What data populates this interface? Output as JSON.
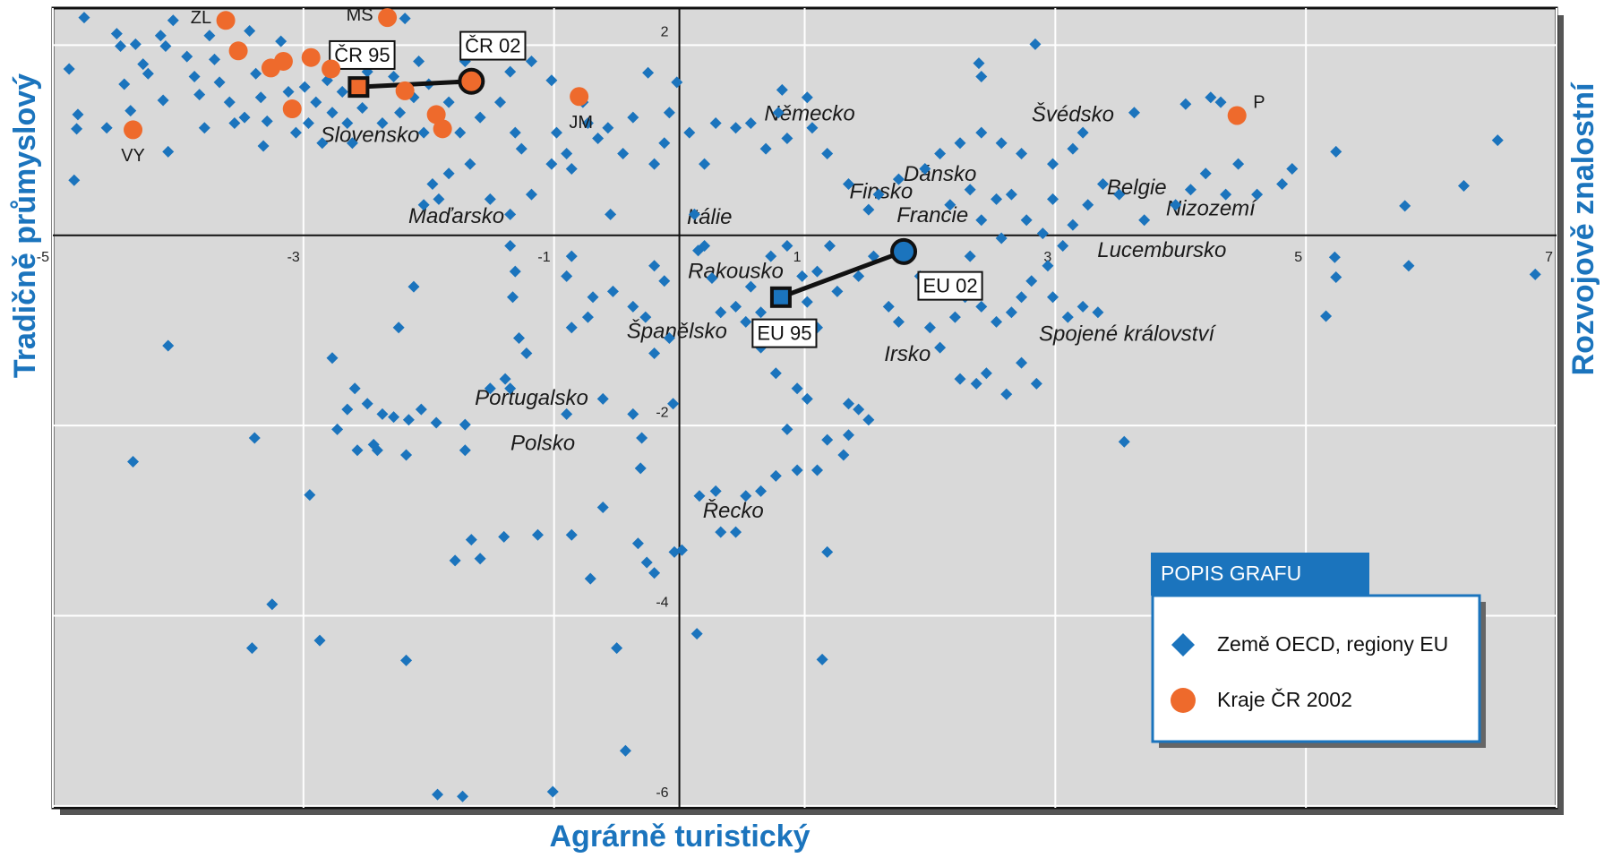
{
  "chart_data": {
    "type": "scatter",
    "x_label": "Agrárně turistický",
    "y_label": "Tradičně průmyslový",
    "y2_label": "Rozvojově znalostní",
    "xlim": [
      -5,
      7
    ],
    "ylim": [
      -6.02,
      2.39
    ],
    "xticks": [
      -5,
      -3,
      -1,
      1,
      3,
      5,
      7
    ],
    "yticks": [
      2,
      -2,
      -4,
      -6
    ],
    "grid": true,
    "legend": {
      "title": "POPIS GRAFU",
      "position": "lower right"
    },
    "series": [
      {
        "name": "Země OECD, regiony EU",
        "color": "#1b74bd",
        "marker": "diamond",
        "x": [
          -4.75,
          -4.87,
          -4.8,
          -4.81,
          -4.83,
          -4.57,
          -4.49,
          -4.46,
          -4.43,
          -4.38,
          -4.34,
          -4.28,
          -4.24,
          -4.14,
          -4.1,
          -4.12,
          -4.08,
          -4.04,
          -3.93,
          -3.87,
          -3.83,
          -3.79,
          -3.75,
          -3.71,
          -3.67,
          -3.59,
          -3.55,
          -3.47,
          -3.43,
          -3.38,
          -3.34,
          -3.32,
          -3.29,
          -3.18,
          -3.12,
          -3.06,
          -2.99,
          -2.96,
          -2.9,
          -2.85,
          -2.81,
          -2.77,
          -2.69,
          -2.65,
          -2.61,
          -2.53,
          -2.49,
          -2.41,
          -2.37,
          -2.28,
          -2.23,
          -2.19,
          -2.12,
          -2.08,
          -2.04,
          -2.0,
          -1.84,
          -1.75,
          -1.71,
          -1.59,
          -1.51,
          -1.43,
          -1.35,
          -1.31,
          -1.26,
          -1.18,
          -1.02,
          -0.98,
          -0.9,
          -0.86,
          -0.77,
          -0.73,
          -0.65,
          -0.55,
          -0.57,
          -0.45,
          -0.37,
          -0.25,
          -0.2,
          -0.12,
          -0.08,
          -0.02,
          -1.97,
          -1.92,
          -2.04,
          -1.84,
          -1.67,
          -1.51,
          -1.35,
          -1.18,
          -1.02,
          -1.35,
          -1.31,
          -1.33,
          -1.28,
          -1.22,
          -1.39,
          -0.86,
          -0.9,
          -0.69,
          -0.73,
          -0.86,
          -0.53,
          -0.37,
          -0.2,
          -0.12,
          -0.2,
          -0.08,
          -0.27,
          -2.12,
          -2.24,
          -2.77,
          -2.59,
          -2.49,
          -2.37,
          -2.28,
          -2.16,
          -2.06,
          -1.94,
          -2.65,
          -2.73,
          -2.41,
          -2.57,
          -2.44,
          -2.18,
          -1.71,
          -1.71,
          -1.51,
          -1.35,
          -0.9,
          -0.61,
          -0.37,
          -0.3,
          -0.05,
          -4.08,
          -4.36,
          -3.39,
          -2.95,
          -3.25,
          -3.41,
          -2.87,
          -2.18,
          -1.79,
          -1.66,
          -1.59,
          -1.4,
          -1.13,
          -0.86,
          -0.71,
          -0.5,
          -0.43,
          -0.33,
          -0.26,
          -0.2,
          -0.04,
          0.14,
          -1.93,
          -1.73,
          -1.01,
          -0.61,
          -0.31,
          0.02,
          0.12,
          0.15,
          0.2,
          0.26,
          0.33,
          0.45,
          0.57,
          0.65,
          0.73,
          0.86,
          0.98,
          1.02,
          1.1,
          1.2,
          0.65,
          0.53,
          0.77,
          0.94,
          1.1,
          1.26,
          1.43,
          1.55,
          1.67,
          1.75,
          1.92,
          2.08,
          2.2,
          2.28,
          2.41,
          2.53,
          2.65,
          2.73,
          2.81,
          2.94,
          2.98,
          3.1,
          3.22,
          3.34,
          2.9,
          2.77,
          2.57,
          2.41,
          2.32,
          3.06,
          3.14,
          3.26,
          3.38,
          3.51,
          3.71,
          3.96,
          4.08,
          4.2,
          4.36,
          4.46,
          4.61,
          4.81,
          4.89,
          5.24,
          5.23,
          5.16,
          5.24,
          5.82,
          5.79,
          6.26,
          6.53,
          6.83,
          3.55,
          4.04,
          4.24,
          4.32,
          3.63,
          3.22,
          3.14,
          2.98,
          2.73,
          2.57,
          2.41,
          2.24,
          2.08,
          1.96,
          1.75,
          1.59,
          1.51,
          1.35,
          1.18,
          1.06,
          0.86,
          0.69,
          0.57,
          0.45,
          0.29,
          0.2,
          0.08,
          2.84,
          2.39,
          2.41,
          0.82,
          1.02,
          0.79,
          2.16,
          2.32,
          2.53,
          2.65,
          2.98,
          2.24,
          2.37,
          2.45,
          2.61,
          2.85,
          2.73,
          2.08,
          2.0,
          0.94,
          1.02,
          1.18,
          1.35,
          1.43,
          1.51,
          1.35,
          1.31,
          1.1,
          0.94,
          0.77,
          0.65,
          0.53,
          0.45,
          0.33,
          0.29,
          0.16,
          1.18,
          1.14,
          0.77,
          0.86
        ],
        "y": [
          2.29,
          1.75,
          1.27,
          1.12,
          0.58,
          1.13,
          2.12,
          1.99,
          1.59,
          1.31,
          2.01,
          1.8,
          1.7,
          2.1,
          1.99,
          1.42,
          0.88,
          2.26,
          1.88,
          1.67,
          1.48,
          1.13,
          2.1,
          1.85,
          1.61,
          1.4,
          1.18,
          1.24,
          2.15,
          1.7,
          1.45,
          0.94,
          1.2,
          2.04,
          1.51,
          1.08,
          1.56,
          1.18,
          1.4,
          0.97,
          1.63,
          1.29,
          1.51,
          1.18,
          0.97,
          1.34,
          1.72,
          1.91,
          1.18,
          1.67,
          1.29,
          2.28,
          1.45,
          1.83,
          1.08,
          1.59,
          1.4,
          1.08,
          1.83,
          1.24,
          1.96,
          1.4,
          1.72,
          1.08,
          0.91,
          1.83,
          1.63,
          1.08,
          0.86,
          0.7,
          1.4,
          1.18,
          1.02,
          0.22,
          1.13,
          0.86,
          1.24,
          1.71,
          0.75,
          0.97,
          1.29,
          1.61,
          0.54,
          0.38,
          0.32,
          0.65,
          0.75,
          0.38,
          0.22,
          0.43,
          0.75,
          -0.11,
          -0.38,
          -0.65,
          -1.08,
          -1.24,
          -1.51,
          -0.22,
          -0.43,
          -0.65,
          -0.86,
          -0.97,
          -0.59,
          -0.75,
          -0.32,
          -0.48,
          -1.24,
          -1.08,
          -0.86,
          -0.54,
          -0.97,
          -1.29,
          -1.61,
          -1.77,
          -1.88,
          -1.91,
          -1.94,
          -1.83,
          -1.97,
          -1.83,
          -2.04,
          -2.26,
          -2.26,
          -2.2,
          -2.31,
          -2.26,
          -1.99,
          -1.61,
          -1.61,
          -1.88,
          -1.72,
          -1.88,
          -2.13,
          -1.77,
          -1.16,
          -2.38,
          -2.13,
          -2.73,
          -3.88,
          -4.34,
          -4.26,
          -4.47,
          -3.42,
          -3.2,
          -3.4,
          -3.17,
          -3.15,
          -3.15,
          -3.61,
          -4.34,
          -5.42,
          -3.24,
          -3.44,
          -3.55,
          -3.33,
          -4.19,
          -5.88,
          -5.9,
          -5.85,
          -2.86,
          -2.45,
          -3.31,
          0.22,
          -0.16,
          -0.11,
          -0.45,
          -0.81,
          -0.75,
          -0.54,
          -0.81,
          -0.22,
          -0.11,
          -0.43,
          -0.7,
          -0.38,
          -0.11,
          -1.18,
          -0.91,
          -0.97,
          -1.08,
          -0.97,
          -0.59,
          -0.43,
          -0.22,
          -0.75,
          -0.91,
          -0.43,
          -0.54,
          -0.86,
          -0.65,
          -0.75,
          -0.91,
          -0.81,
          -0.65,
          -0.48,
          -0.32,
          -0.65,
          -0.86,
          -0.75,
          -0.81,
          0.02,
          0.16,
          -0.03,
          0.16,
          -0.22,
          -0.11,
          0.11,
          0.32,
          0.54,
          0.43,
          0.16,
          0.32,
          0.48,
          0.65,
          0.43,
          0.75,
          0.43,
          0.54,
          0.7,
          0.88,
          -0.23,
          -0.85,
          -0.44,
          -0.32,
          0.31,
          0.52,
          1.0,
          -0.41,
          -2.17,
          1.38,
          1.45,
          1.4,
          1.29,
          1.08,
          0.91,
          0.75,
          0.86,
          0.97,
          1.08,
          0.97,
          0.86,
          0.7,
          0.59,
          0.43,
          0.27,
          0.54,
          0.86,
          1.13,
          1.02,
          0.91,
          1.18,
          1.13,
          1.18,
          0.75,
          1.08,
          2.01,
          1.81,
          1.67,
          1.53,
          1.45,
          1.29,
          0.32,
          0.48,
          0.38,
          0.43,
          0.38,
          -1.51,
          -1.56,
          -1.45,
          -1.67,
          -1.56,
          -1.34,
          -1.18,
          -0.97,
          -1.61,
          -1.72,
          -2.15,
          -1.77,
          -1.83,
          -1.94,
          -2.1,
          -2.31,
          -2.47,
          -2.47,
          -2.53,
          -2.69,
          -2.74,
          -3.12,
          -3.12,
          -2.69,
          -2.74,
          -3.33,
          -4.46,
          -1.45,
          -2.04
        ]
      },
      {
        "name": "Kraje ČR 2002",
        "color": "#ee6a2c",
        "marker": "circle",
        "x": [
          -3.62,
          -2.33,
          -4.36,
          -0.8,
          4.45,
          -3.52,
          -3.26,
          -3.16,
          -2.94,
          -2.78,
          -3.09,
          -2.19,
          -1.94,
          -1.89
        ],
        "y": [
          2.26,
          2.29,
          1.11,
          1.46,
          1.26,
          1.94,
          1.76,
          1.83,
          1.87,
          1.75,
          1.33,
          1.52,
          1.27,
          1.12
        ],
        "labels": [
          "ZL",
          "MS",
          "VY",
          "JM",
          "P",
          null,
          null,
          null,
          null,
          null,
          null,
          null,
          null,
          null
        ]
      }
    ],
    "paths": [
      {
        "labels": [
          "ČR 95",
          "ČR 02"
        ],
        "x": [
          -2.56,
          -1.66
        ],
        "y": [
          1.56,
          1.62
        ],
        "color": "#ee6a2c"
      },
      {
        "labels": [
          "EU 95",
          "EU 02"
        ],
        "x": [
          0.81,
          1.79
        ],
        "y": [
          -0.65,
          -0.17
        ],
        "color": "#1b74bd"
      }
    ],
    "annotations": [
      {
        "text": "Německo",
        "x": 1.04,
        "y": 1.27
      },
      {
        "text": "Švédsko",
        "x": 3.14,
        "y": 1.26
      },
      {
        "text": "Dánsko",
        "x": 2.08,
        "y": 0.63
      },
      {
        "text": "Finsko",
        "x": 1.61,
        "y": 0.45
      },
      {
        "text": "Francie",
        "x": 2.02,
        "y": 0.2
      },
      {
        "text": "Belgie",
        "x": 3.65,
        "y": 0.49
      },
      {
        "text": "Nizozemí",
        "x": 4.24,
        "y": 0.27
      },
      {
        "text": "Lucembursko",
        "x": 3.85,
        "y": -0.17
      },
      {
        "text": "Spojené království",
        "x": 3.57,
        "y": -1.05
      },
      {
        "text": "Irsko",
        "x": 1.82,
        "y": -1.26
      },
      {
        "text": "Itálie",
        "x": 0.24,
        "y": 0.18
      },
      {
        "text": "Maďarsko",
        "x": -1.78,
        "y": 0.19
      },
      {
        "text": "Slovensko",
        "x": -2.47,
        "y": 1.04
      },
      {
        "text": "Rakousko",
        "x": 0.45,
        "y": -0.39
      },
      {
        "text": "Španělsko",
        "x": -0.02,
        "y": -1.02
      },
      {
        "text": "Portugalsko",
        "x": -1.18,
        "y": -1.72
      },
      {
        "text": "Polsko",
        "x": -1.09,
        "y": -2.2
      },
      {
        "text": "Řecko",
        "x": 0.43,
        "y": -2.91
      }
    ]
  }
}
